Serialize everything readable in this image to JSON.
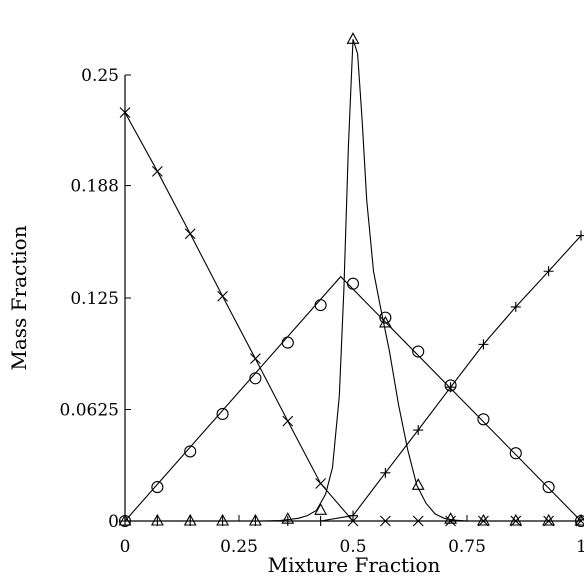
{
  "chart_data": {
    "type": "line",
    "title": "",
    "xlabel": "Mixture Fraction",
    "ylabel": "Mass Fraction",
    "xlim": [
      0,
      1
    ],
    "ylim": [
      0,
      0.25
    ],
    "x_ticks": [
      0,
      0.25,
      0.5,
      0.75,
      1
    ],
    "x_tick_labels": [
      "0",
      "0.25",
      "0.5",
      "0.75",
      "1"
    ],
    "y_ticks": [
      0,
      0.0625,
      0.125,
      0.188,
      0.25
    ],
    "y_tick_labels": [
      "0",
      "0.0625",
      "0.125",
      "0.188",
      "0.25"
    ],
    "grid": false,
    "series": [
      {
        "marker": "x",
        "x": [
          0,
          0.071,
          0.143,
          0.214,
          0.286,
          0.357,
          0.429,
          0.5,
          0.571,
          0.643,
          0.714,
          0.786,
          0.857,
          0.929,
          1.0
        ],
        "y": [
          0.229,
          0.196,
          0.161,
          0.126,
          0.091,
          0.056,
          0.021,
          0,
          0,
          0,
          0,
          0,
          0,
          0,
          0
        ]
      },
      {
        "marker": "+",
        "x": [
          0,
          0.071,
          0.143,
          0.214,
          0.286,
          0.357,
          0.429,
          0.5,
          0.571,
          0.643,
          0.714,
          0.786,
          0.857,
          0.929,
          1.0
        ],
        "y": [
          0,
          0,
          0,
          0,
          0,
          0,
          0,
          0.003,
          0.027,
          0.051,
          0.075,
          0.099,
          0.12,
          0.14,
          0.16
        ]
      },
      {
        "marker": "circle",
        "x": [
          0,
          0.071,
          0.143,
          0.214,
          0.286,
          0.357,
          0.429,
          0.5,
          0.571,
          0.643,
          0.714,
          0.786,
          0.857,
          0.929,
          1.0
        ],
        "y": [
          0,
          0.019,
          0.039,
          0.06,
          0.08,
          0.1,
          0.121,
          0.133,
          0.114,
          0.095,
          0.076,
          0.057,
          0.038,
          0.019,
          0
        ],
        "curve_x": [
          0,
          0.473,
          1.0
        ],
        "curve_y": [
          0,
          0.137,
          0
        ]
      },
      {
        "marker": "triangle",
        "x": [
          0,
          0.071,
          0.143,
          0.214,
          0.286,
          0.357,
          0.429,
          0.5,
          0.571,
          0.643,
          0.714,
          0.786,
          0.857,
          0.929,
          1.0
        ],
        "y": [
          0,
          0,
          0,
          0,
          0,
          0.001,
          0.006,
          0.27,
          0.111,
          0.02,
          0.001,
          0,
          0,
          0,
          0
        ],
        "curve_x": [
          0,
          0.3,
          0.34,
          0.38,
          0.4,
          0.42,
          0.44,
          0.455,
          0.47,
          0.48,
          0.49,
          0.5,
          0.51,
          0.52,
          0.53,
          0.545,
          0.56,
          0.58,
          0.6,
          0.62,
          0.64,
          0.66,
          0.68,
          0.7,
          0.72,
          0.75,
          1.0
        ],
        "curve_y": [
          0,
          0,
          0.0003,
          0.0015,
          0.003,
          0.006,
          0.015,
          0.03,
          0.07,
          0.13,
          0.21,
          0.27,
          0.262,
          0.225,
          0.18,
          0.14,
          0.12,
          0.095,
          0.065,
          0.04,
          0.02,
          0.01,
          0.004,
          0.0015,
          0.0005,
          0,
          0
        ]
      }
    ]
  }
}
